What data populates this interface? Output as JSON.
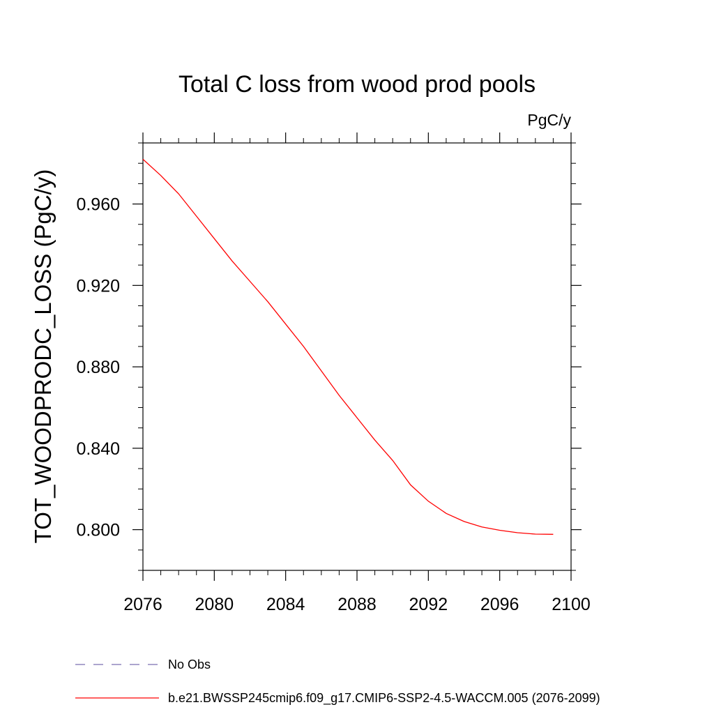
{
  "chart_data": {
    "type": "line",
    "title": "Total C loss from wood prod pools",
    "units_label": "PgC/y",
    "ylabel": "TOT_WOODPRODC_LOSS  (PgC/y)",
    "xlabel": "",
    "xlim": [
      2076,
      2100
    ],
    "ylim": [
      0.78,
      0.99
    ],
    "x_ticks": [
      "2076",
      "2080",
      "2084",
      "2088",
      "2092",
      "2096",
      "2100"
    ],
    "y_ticks": [
      "0.800",
      "0.840",
      "0.880",
      "0.920",
      "0.960"
    ],
    "grid": false,
    "series": [
      {
        "name": "b.e21.BWSSP245cmip6.f09_g17.CMIP6-SSP2-4.5-WACCM.005 (2076-2099)",
        "color": "#ff0000",
        "style": "solid",
        "x": [
          2076,
          2077,
          2078,
          2079,
          2080,
          2081,
          2082,
          2083,
          2084,
          2085,
          2086,
          2087,
          2088,
          2089,
          2090,
          2091,
          2092,
          2093,
          2094,
          2095,
          2096,
          2097,
          2098,
          2099
        ],
        "y": [
          0.982,
          0.974,
          0.965,
          0.954,
          0.943,
          0.932,
          0.922,
          0.912,
          0.901,
          0.89,
          0.878,
          0.866,
          0.855,
          0.844,
          0.834,
          0.822,
          0.814,
          0.808,
          0.804,
          0.8013,
          0.7997,
          0.7985,
          0.7978,
          0.7977
        ]
      }
    ],
    "legend": {
      "placement": "bottom-left",
      "entries": [
        {
          "label": "No Obs",
          "color": "#7a6fb0",
          "style": "dashed"
        },
        {
          "label": "b.e21.BWSSP245cmip6.f09_g17.CMIP6-SSP2-4.5-WACCM.005 (2076-2099)",
          "color": "#ff0000",
          "style": "solid"
        }
      ]
    }
  }
}
